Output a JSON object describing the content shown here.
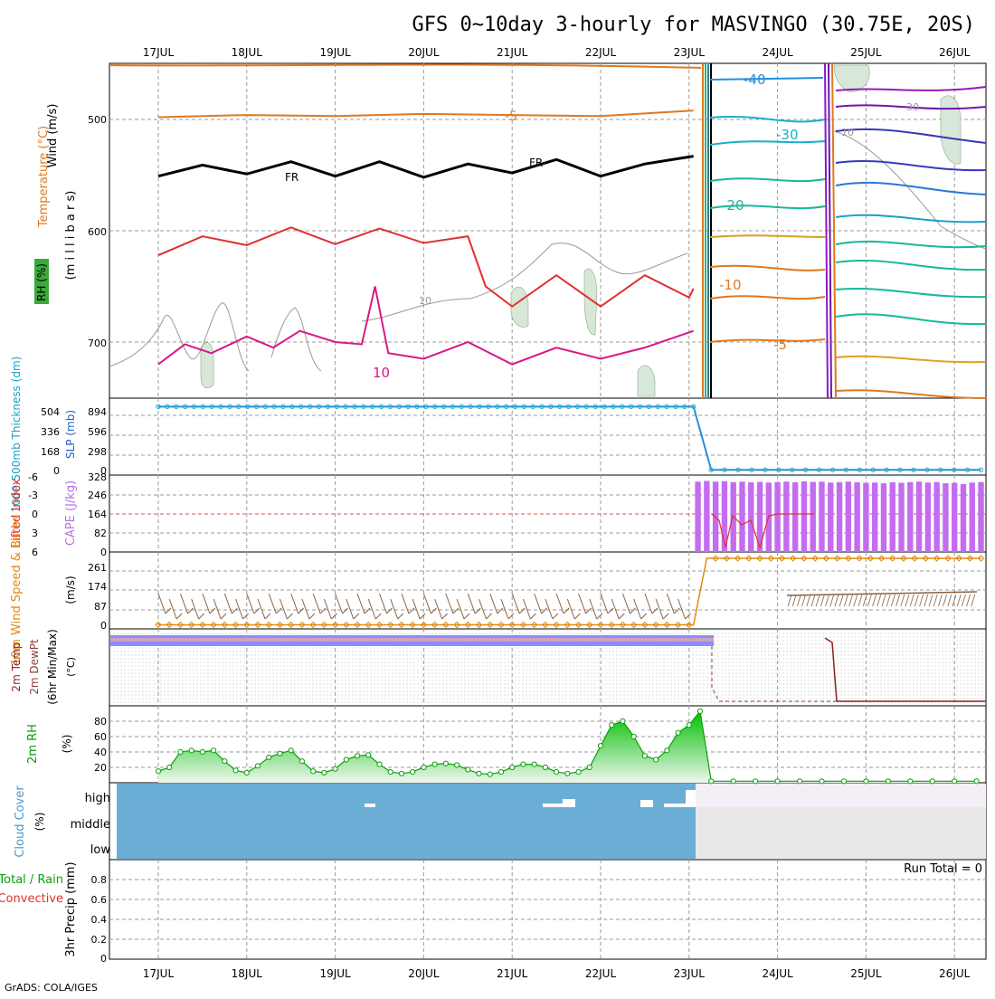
{
  "header": {
    "title": "GFS 0~10day 3-hourly for MASVINGO (30.75E, 20S)",
    "credit": "GrADS: COLA/IGES"
  },
  "dates": [
    "17JUL",
    "18JUL",
    "19JUL",
    "20JUL",
    "21JUL",
    "22JUL",
    "23JUL",
    "24JUL",
    "25JUL",
    "26JUL"
  ],
  "chart_data": [
    {
      "type": "line",
      "panel": "upper-air",
      "ylabel": {
        "wind": "Wind (m/s)",
        "temp": "Temperature (°C)",
        "units": "(m i l l i b a r s)",
        "rh": "RH (%)"
      },
      "yticks": [
        "500",
        "600",
        "700"
      ],
      "ylim": [
        450,
        750
      ],
      "y_inverted": true,
      "contour_labels": [
        "-5",
        "FR",
        "FR",
        "10",
        "10",
        "-40",
        "-30",
        "-20",
        "-10",
        "-5",
        "30",
        "10"
      ],
      "series": [
        {
          "name": "-5",
          "color": "#e07820",
          "x": [
            0,
            1,
            2,
            3,
            4,
            5,
            6.05
          ],
          "y": [
            498,
            496,
            497,
            495,
            496,
            497,
            492
          ]
        },
        {
          "name": "FR",
          "color": "#000000",
          "x": [
            0,
            0.5,
            1,
            1.5,
            2,
            2.5,
            3,
            3.5,
            4,
            4.5,
            5,
            5.5,
            6.05
          ],
          "y": [
            551,
            541,
            549,
            538,
            551,
            538,
            552,
            540,
            548,
            536,
            551,
            540,
            533
          ]
        },
        {
          "name": "10",
          "color": "#d81888",
          "x": [
            0,
            0.3,
            0.6,
            1,
            1.3,
            1.6,
            2,
            2.3,
            2.45,
            2.6,
            3,
            3.5,
            4,
            4.5,
            5,
            5.5,
            6.05
          ],
          "y": [
            720,
            702,
            710,
            695,
            705,
            690,
            700,
            702,
            650,
            710,
            715,
            700,
            720,
            705,
            715,
            705,
            690
          ]
        },
        {
          "name": "",
          "color": "#e03030",
          "x": [
            0,
            0.5,
            1,
            1.5,
            2,
            2.5,
            3,
            3.5,
            3.7,
            4,
            4.5,
            5,
            5.5,
            6,
            6.05
          ],
          "y": [
            622,
            605,
            613,
            597,
            612,
            598,
            611,
            605,
            650,
            668,
            640,
            668,
            640,
            660,
            652
          ]
        }
      ]
    },
    {
      "type": "line",
      "panel": "thickness-slp",
      "ylabel": {
        "thickness": "1000-500mb Thickness (dm)",
        "slp": "SLP (mb)"
      },
      "yticks_left": [
        "504",
        "336",
        "168",
        "0"
      ],
      "yticks_right": [
        "894",
        "596",
        "298",
        "0"
      ],
      "ylim": [
        0,
        1000
      ],
      "series": [
        {
          "name": "",
          "color": "#2090e0",
          "x": [
            0,
            6.05,
            6.25,
            9.3
          ],
          "y": [
            930,
            930,
            10,
            10
          ]
        }
      ]
    },
    {
      "type": "bar",
      "panel": "cape-li",
      "ylabel": {
        "li": "Lifted Index",
        "cape": "CAPE (J/kg)"
      },
      "yticks_left": [
        "-6",
        "-3",
        "0",
        "3",
        "6"
      ],
      "yticks_right": [
        "328",
        "246",
        "164",
        "82",
        "0"
      ],
      "ylim": [
        0,
        328
      ],
      "x": [
        6.1,
        6.2,
        6.3,
        6.4,
        6.5,
        6.6,
        6.7,
        6.8,
        6.9,
        7.0,
        7.1,
        7.2,
        7.3,
        7.4,
        7.5,
        7.6,
        7.7,
        7.8,
        7.9,
        8.0,
        8.1,
        8.2,
        8.3,
        8.4,
        8.5,
        8.6,
        8.7,
        8.8,
        8.9,
        9.0,
        9.1,
        9.2,
        9.3
      ],
      "values": [
        300,
        303,
        300,
        302,
        298,
        300,
        297,
        299,
        296,
        298,
        300,
        297,
        301,
        299,
        300,
        296,
        298,
        300,
        297,
        295,
        296,
        293,
        297,
        295,
        298,
        300,
        296,
        298,
        293,
        295,
        290,
        296,
        298
      ]
    },
    {
      "type": "line",
      "panel": "10m-wind",
      "ylabel": {
        "wind": "10m Wind Speed & Barbs",
        "units": "(m/s)"
      },
      "yticks": [
        "261",
        "174",
        "87",
        "0"
      ],
      "ylim": [
        0,
        290
      ],
      "series": [
        {
          "name": "",
          "color": "#e08a10",
          "x": [
            0,
            6.05,
            6.2,
            9.3
          ],
          "y": [
            5,
            5,
            250,
            250
          ]
        }
      ]
    },
    {
      "type": "line",
      "panel": "2m-temp",
      "ylabel": {
        "temp": "2m Temp",
        "dew": "2m DewPt",
        "range": "(6hr Min/Max)",
        "units": "(°C)"
      }
    },
    {
      "type": "area",
      "panel": "2m-rh",
      "ylabel": {
        "rh": "2m RH",
        "units": "(%)"
      },
      "yticks": [
        "80",
        "60",
        "40",
        "20"
      ],
      "ylim": [
        0,
        100
      ],
      "series": [
        {
          "name": "",
          "color": "#0aa00a",
          "x": [
            0,
            0.125,
            0.25,
            0.375,
            0.5,
            0.625,
            0.75,
            0.875,
            1,
            1.125,
            1.25,
            1.375,
            1.5,
            1.625,
            1.75,
            1.875,
            2,
            2.125,
            2.25,
            2.375,
            2.5,
            2.625,
            2.75,
            2.875,
            3,
            3.125,
            3.25,
            3.375,
            3.5,
            3.625,
            3.75,
            3.875,
            4,
            4.125,
            4.25,
            4.375,
            4.5,
            4.625,
            4.75,
            4.875,
            5,
            5.125,
            5.25,
            5.375,
            5.5,
            5.625,
            5.75,
            5.875,
            6,
            6.125,
            6.25,
            6.5,
            6.75,
            7,
            7.25,
            7.5,
            7.75,
            8,
            8.25,
            8.5,
            8.75,
            9,
            9.25
          ],
          "y": [
            15,
            20,
            40,
            42,
            40,
            42,
            28,
            16,
            13,
            22,
            33,
            38,
            42,
            28,
            15,
            13,
            18,
            30,
            35,
            36,
            24,
            14,
            12,
            14,
            20,
            24,
            25,
            23,
            17,
            12,
            11,
            14,
            20,
            24,
            24,
            20,
            14,
            12,
            14,
            20,
            48,
            75,
            80,
            60,
            35,
            30,
            42,
            65,
            75,
            93,
            2,
            2,
            2,
            2,
            2,
            2,
            2,
            2,
            2,
            2,
            2,
            2,
            2
          ]
        }
      ]
    },
    {
      "type": "heatmap",
      "panel": "cloud-cover",
      "ylabel": {
        "cloud": "Cloud Cover",
        "units": "(%)"
      },
      "levels": [
        "high",
        "middle",
        "low"
      ],
      "transition_x": 6.05
    },
    {
      "type": "bar",
      "panel": "precip",
      "ylabel": {
        "precip": "3hr Precip (mm)",
        "total": "Total / Rain",
        "conv": "Convective"
      },
      "yticks": [
        "0.8",
        "0.6",
        "0.4",
        "0.2",
        "0"
      ],
      "ylim": [
        0,
        1
      ],
      "run_total": "Run Total = 0",
      "values": []
    }
  ]
}
